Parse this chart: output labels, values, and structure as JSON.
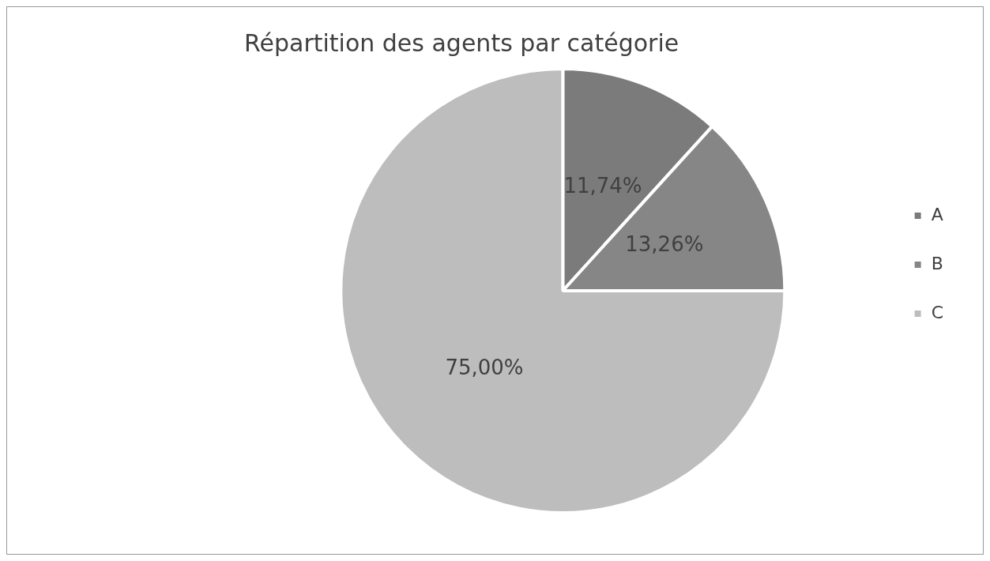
{
  "chart_data": {
    "type": "pie",
    "title": "Répartition des agents par catégorie",
    "categories": [
      "A",
      "B",
      "C"
    ],
    "values": [
      11.74,
      13.26,
      75.0
    ],
    "colors": [
      "#7b7b7b",
      "#868686",
      "#bdbdbd"
    ],
    "value_labels": [
      "11,74%",
      "13,26%",
      "75,00%"
    ],
    "legend": "right"
  }
}
